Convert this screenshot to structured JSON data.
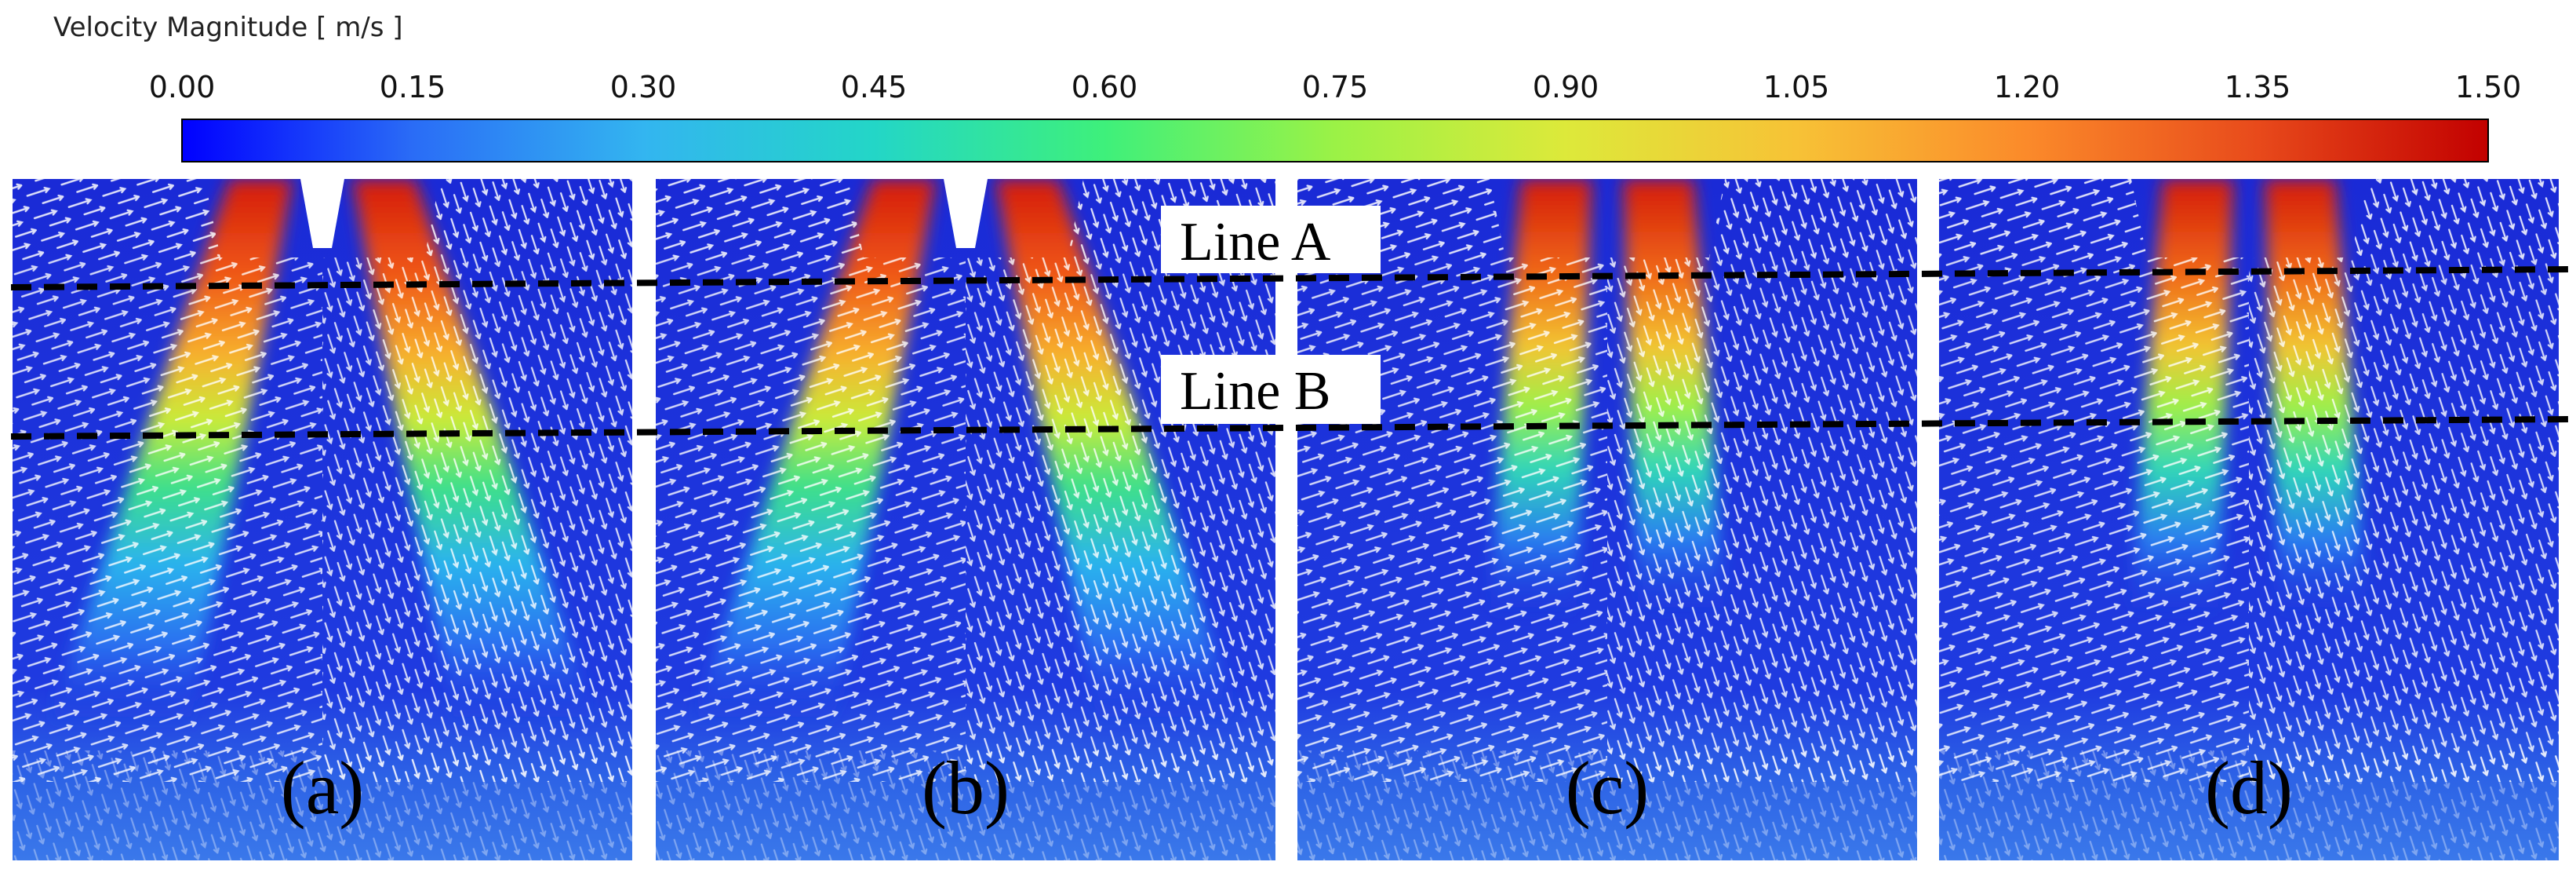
{
  "colorbar": {
    "title": "Velocity Magnitude [ m/s ]",
    "min": 0.0,
    "max": 1.5,
    "ticks": [
      "0.00",
      "0.15",
      "0.30",
      "0.45",
      "0.60",
      "0.75",
      "0.90",
      "1.05",
      "1.20",
      "1.35",
      "1.50"
    ],
    "colors": [
      "#0000ff",
      "#2a6cf6",
      "#33b5f0",
      "#23d6c7",
      "#3ef07b",
      "#9bf246",
      "#dde93a",
      "#f7c236",
      "#fb8a2a",
      "#e84a1b",
      "#c20000"
    ]
  },
  "background_color": "#1e2fd8",
  "panels": [
    {
      "label": "(a)",
      "jet_type": "diverging"
    },
    {
      "label": "(b)",
      "jet_type": "diverging"
    },
    {
      "label": "(c)",
      "jet_type": "parallel"
    },
    {
      "label": "(d)",
      "jet_type": "parallel"
    }
  ],
  "reference_lines": [
    {
      "label": "Line A"
    },
    {
      "label": "Line B"
    }
  ]
}
